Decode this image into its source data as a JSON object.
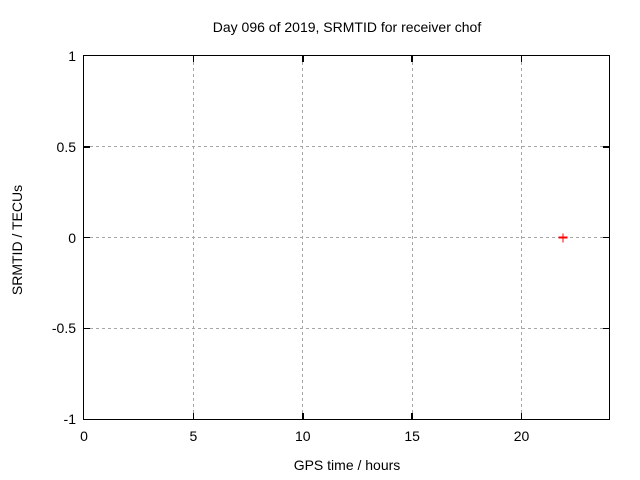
{
  "chart_data": {
    "type": "scatter",
    "title": "Day 096 of 2019, SRMTID for receiver chof",
    "xlabel": "GPS time / hours",
    "ylabel": "SRMTID / TECUs",
    "xlim": [
      0,
      24
    ],
    "ylim": [
      -1,
      1
    ],
    "xticks": {
      "values": [
        0,
        5,
        10,
        15,
        20
      ],
      "labels": [
        "0",
        "5",
        "10",
        "15",
        "20"
      ]
    },
    "yticks": {
      "values": [
        1,
        0.5,
        0,
        -0.5,
        -1
      ],
      "labels": [
        "1",
        "0.5",
        "0",
        "-0.5",
        "-1"
      ]
    },
    "grid": true,
    "grid_style": "dashed",
    "legend": "none",
    "series": [
      {
        "name": "SRMTID",
        "marker": "plus",
        "color": "#ff0000",
        "points": [
          {
            "x": 21.9,
            "y": 0
          }
        ]
      }
    ],
    "colors": {
      "background": "#ffffff",
      "border": "#000000",
      "text": "#000000",
      "grid": "#a6a6a6"
    }
  }
}
